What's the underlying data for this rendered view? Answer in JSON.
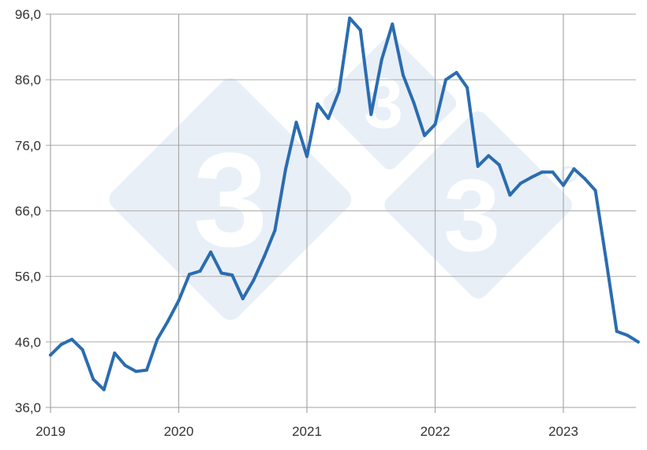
{
  "chart_data": {
    "type": "line",
    "title": "",
    "xlabel": "",
    "ylabel": "",
    "ylim": [
      36,
      96
    ],
    "yticks": [
      "36,0",
      "46,0",
      "56,0",
      "66,0",
      "76,0",
      "86,0",
      "96,0"
    ],
    "ytick_values": [
      36,
      46,
      56,
      66,
      76,
      86,
      96
    ],
    "xticks": [
      "2019",
      "2020",
      "2021",
      "2022",
      "2023"
    ],
    "grid": true,
    "line_color": "#2b6cb0",
    "x_start": "2019-01",
    "x_frequency": "monthly",
    "series": [
      {
        "values": [
          44.0,
          45.6,
          46.4,
          44.8,
          40.3,
          38.7,
          44.3,
          42.4,
          41.5,
          41.7,
          46.4,
          49.2,
          52.3,
          56.3,
          56.8,
          59.7,
          56.5,
          56.2,
          52.6,
          55.4,
          59.0,
          63.0,
          72.3,
          79.5,
          74.3,
          82.3,
          80.1,
          84.2,
          95.4,
          93.6,
          80.7,
          89.1,
          94.5,
          86.7,
          82.5,
          77.5,
          79.2,
          86.0,
          87.1,
          84.8,
          72.8,
          74.4,
          73.0,
          68.4,
          70.2,
          71.1,
          71.9,
          71.9,
          69.9,
          72.4,
          70.9,
          69.1,
          58.5,
          47.6,
          47.0,
          46.0
        ]
      }
    ]
  }
}
